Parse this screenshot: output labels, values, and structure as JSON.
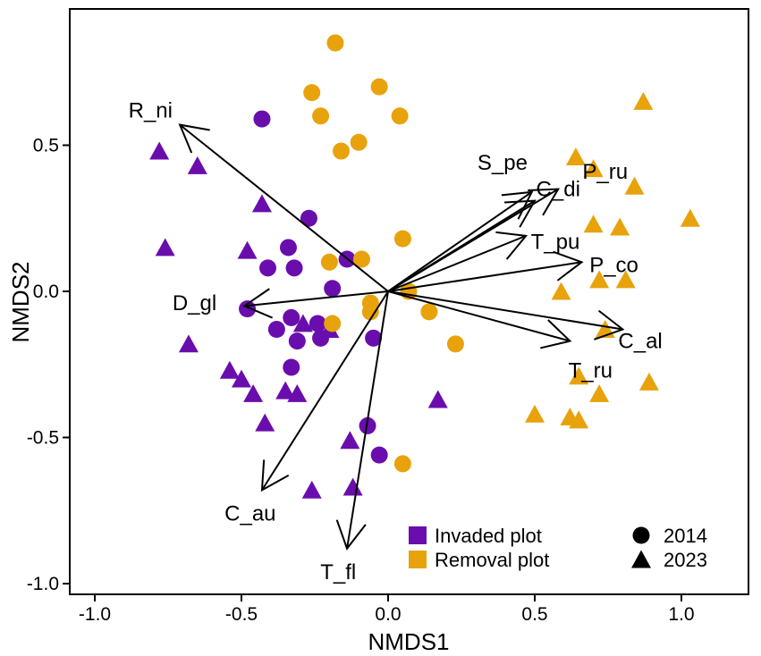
{
  "chart_data": {
    "type": "scatter",
    "title": "",
    "xlabel": "NMDS1",
    "ylabel": "NMDS2",
    "xlim": [
      -1.1,
      1.2
    ],
    "ylim": [
      -1.03,
      0.98
    ],
    "xticks": [
      -1.0,
      -0.5,
      0.0,
      0.5,
      1.0
    ],
    "xtick_labels": [
      "-1.0",
      "-0.5",
      "0.0",
      "0.5",
      "1.0"
    ],
    "yticks": [
      -1.0,
      -0.5,
      0.0,
      0.5
    ],
    "ytick_labels": [
      "-1.0",
      "-0.5",
      "0.0",
      "0.5"
    ],
    "grid": false,
    "colors": {
      "invaded": "#6a0dad",
      "removal": "#e8a20c"
    },
    "series": [
      {
        "name": "Invaded plot 2014",
        "group": "invaded",
        "shape": "circle",
        "points": [
          [
            -0.43,
            0.59
          ],
          [
            -0.27,
            0.25
          ],
          [
            -0.34,
            0.15
          ],
          [
            -0.41,
            0.08
          ],
          [
            -0.32,
            0.08
          ],
          [
            -0.14,
            0.11
          ],
          [
            -0.19,
            0.01
          ],
          [
            -0.48,
            -0.06
          ],
          [
            -0.38,
            -0.13
          ],
          [
            -0.33,
            -0.09
          ],
          [
            -0.24,
            -0.11
          ],
          [
            -0.23,
            -0.16
          ],
          [
            -0.31,
            -0.17
          ],
          [
            -0.33,
            -0.26
          ],
          [
            -0.05,
            -0.16
          ],
          [
            -0.07,
            -0.46
          ],
          [
            -0.03,
            -0.56
          ]
        ]
      },
      {
        "name": "Invaded plot 2023",
        "group": "invaded",
        "shape": "triangle",
        "points": [
          [
            -0.78,
            0.48
          ],
          [
            -0.65,
            0.43
          ],
          [
            -0.43,
            0.3
          ],
          [
            -0.76,
            0.15
          ],
          [
            -0.48,
            0.14
          ],
          [
            -0.29,
            -0.11
          ],
          [
            -0.2,
            -0.13
          ],
          [
            -0.68,
            -0.18
          ],
          [
            -0.54,
            -0.27
          ],
          [
            -0.5,
            -0.3
          ],
          [
            -0.46,
            -0.35
          ],
          [
            -0.35,
            -0.34
          ],
          [
            -0.31,
            -0.35
          ],
          [
            -0.42,
            -0.45
          ],
          [
            0.17,
            -0.37
          ],
          [
            -0.13,
            -0.51
          ],
          [
            -0.26,
            -0.68
          ],
          [
            -0.12,
            -0.67
          ]
        ]
      },
      {
        "name": "Removal plot 2014",
        "group": "removal",
        "shape": "circle",
        "points": [
          [
            -0.18,
            0.85
          ],
          [
            -0.26,
            0.68
          ],
          [
            -0.03,
            0.7
          ],
          [
            -0.23,
            0.6
          ],
          [
            0.04,
            0.6
          ],
          [
            -0.1,
            0.51
          ],
          [
            -0.16,
            0.48
          ],
          [
            0.05,
            0.18
          ],
          [
            -0.2,
            0.1
          ],
          [
            -0.09,
            0.11
          ],
          [
            0.07,
            0.0
          ],
          [
            -0.06,
            -0.04
          ],
          [
            -0.06,
            -0.07
          ],
          [
            -0.19,
            -0.11
          ],
          [
            0.14,
            -0.07
          ],
          [
            0.23,
            -0.18
          ],
          [
            0.05,
            -0.59
          ]
        ]
      },
      {
        "name": "Removal plot 2023",
        "group": "removal",
        "shape": "triangle",
        "points": [
          [
            0.87,
            0.65
          ],
          [
            0.64,
            0.46
          ],
          [
            0.7,
            0.42
          ],
          [
            0.84,
            0.36
          ],
          [
            1.03,
            0.25
          ],
          [
            0.7,
            0.23
          ],
          [
            0.79,
            0.22
          ],
          [
            0.72,
            0.04
          ],
          [
            0.81,
            0.04
          ],
          [
            0.59,
            0.0
          ],
          [
            0.74,
            -0.13
          ],
          [
            0.65,
            -0.29
          ],
          [
            0.89,
            -0.31
          ],
          [
            0.72,
            -0.35
          ],
          [
            0.5,
            -0.42
          ],
          [
            0.62,
            -0.43
          ],
          [
            0.65,
            -0.44
          ]
        ]
      }
    ],
    "vectors": [
      {
        "name": "R_ni",
        "x": -0.71,
        "y": 0.57,
        "label_at": [
          -0.81,
          0.62
        ]
      },
      {
        "name": "D_gl",
        "x": -0.49,
        "y": -0.05,
        "label_at": [
          -0.66,
          -0.04
        ]
      },
      {
        "name": "C_au",
        "x": -0.43,
        "y": -0.68,
        "label_at": [
          -0.47,
          -0.76
        ]
      },
      {
        "name": "T_fl",
        "x": -0.14,
        "y": -0.88,
        "label_at": [
          -0.17,
          -0.96
        ]
      },
      {
        "name": "C_al",
        "x": 0.8,
        "y": -0.13,
        "label_at": [
          0.86,
          -0.17
        ]
      },
      {
        "name": "T_ru",
        "x": 0.62,
        "y": -0.17,
        "label_at": [
          0.69,
          -0.27
        ]
      },
      {
        "name": "P_co",
        "x": 0.66,
        "y": 0.1,
        "label_at": [
          0.77,
          0.09
        ]
      },
      {
        "name": "T_pu",
        "x": 0.47,
        "y": 0.19,
        "label_at": [
          0.57,
          0.17
        ]
      },
      {
        "name": "S_pe",
        "x": 0.49,
        "y": 0.34,
        "label_at": [
          0.39,
          0.44
        ]
      },
      {
        "name": "P_ru",
        "x": 0.5,
        "y": 0.31,
        "label_at": [
          0.74,
          0.41
        ]
      },
      {
        "name": "C_di",
        "x": 0.58,
        "y": 0.35,
        "label_at": [
          0.58,
          0.35
        ]
      }
    ],
    "legend": {
      "placement": "bottom-right",
      "colors": [
        {
          "label": "Invaded plot",
          "group": "invaded"
        },
        {
          "label": "Removal plot",
          "group": "removal"
        }
      ],
      "shapes": [
        {
          "label": "2014",
          "shape": "circle"
        },
        {
          "label": "2023",
          "shape": "triangle"
        }
      ]
    }
  }
}
